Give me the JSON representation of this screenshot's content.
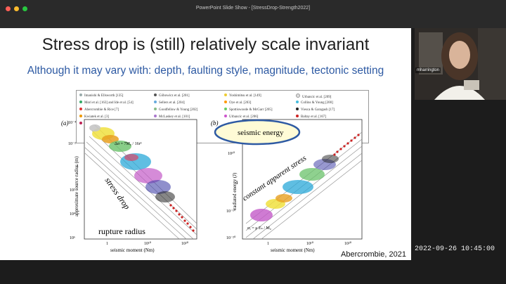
{
  "window": {
    "title": "PowerPoint Slide Show - [StressDrop-Strength2022]",
    "controls": {
      "close_color": "#ff5f57",
      "minimize_color": "#febc2e",
      "zoom_color": "#28c840"
    }
  },
  "slide": {
    "title": "Stress drop is (still) relatively scale invariant",
    "subtitle": "Although it may vary with: depth, faulting style, magnitude, tectonic setting",
    "credit": "Abercrombie, 2021",
    "legend": {
      "col1": [
        "Imanishi & Ellsworth [135]",
        "Mori et al. [163] and Ide et al. [54]",
        "Abercrombie & Rice [7]",
        "Kwiatek et al. [3]",
        "Selvadurai [6]"
      ],
      "col2": [
        "Göbowicz et al. [201]",
        "Sellers et al. [204]",
        "Goodfellow & Young [202]",
        "McLaskey et al. [101]"
      ],
      "col3": [
        "Yoshimitsu et al. [149]",
        "Oye et al. [203]",
        "Spottiswoode & McGarr [205]",
        "Urbancic et al. [206]"
      ],
      "col4": [
        "Urbancic et al. [209]",
        "Collins & Young [200]",
        "Viesca & Garagash [17]",
        "Baltay et al. [167]"
      ]
    },
    "panel_a": {
      "label": "(a)",
      "ylabel": "approximate source radius (m)",
      "xlabel": "seismic moment (Nm)",
      "yticks": [
        "10⁻⁴",
        "10⁻²",
        "1",
        "10²",
        "10⁴",
        "10⁶"
      ],
      "xticks": [
        "1",
        "10¹⁰",
        "10²⁰"
      ],
      "formula": "Δσ = 7M₀ / 16r³",
      "annot_stress": "stress drop",
      "annot_rupture": "rupture radius",
      "line_labels": [
        "1000 MPa",
        "100 MPa",
        "10 MPa",
        "1 MPa",
        "0.1 MPa",
        "0.01 MPa"
      ]
    },
    "panel_b": {
      "label": "(b)",
      "ylabel": "radiated energy (J)",
      "xlabel": "seismic moment (Nm)",
      "yticks": [
        "10²⁰",
        "10¹⁰",
        "1",
        "10⁻¹⁰",
        "10⁻²⁰"
      ],
      "xticks": [
        "1",
        "10¹⁰",
        "10²⁰"
      ],
      "annot_apparent": "constant apparent stress",
      "annot_energy": "seismic energy",
      "formula": "σₐ = μ Eₛ / M₀"
    }
  },
  "webcam": {
    "name": "mharrington"
  },
  "clock": {
    "datetime": "2022-09-26 10:45:00"
  }
}
